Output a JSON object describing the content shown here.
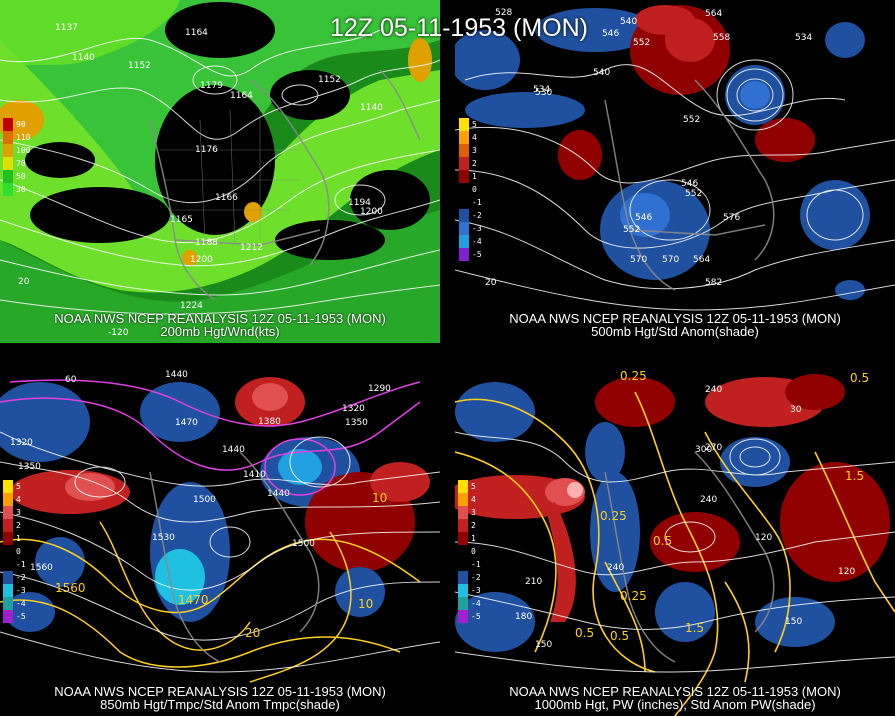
{
  "title": "12Z 05-11-1953 (MON)",
  "panels": {
    "p1": {
      "source": "NOAA NWS NCEP REANALYSIS 12Z 05-11-1953 (MON)",
      "field": "200mb Hgt/Wnd(kts)",
      "legend": [
        {
          "label": "90",
          "color": "#c00000"
        },
        {
          "label": "110",
          "color": "#e07000"
        },
        {
          "label": "100",
          "color": "#e0a000"
        },
        {
          "label": "70",
          "color": "#e0e000"
        },
        {
          "label": "50",
          "color": "#20c020"
        },
        {
          "label": "30",
          "color": "#30e030"
        }
      ],
      "contour_labels": [
        "1137",
        "1164",
        "1140",
        "1152",
        "1179",
        "1164",
        "1152",
        "1176",
        "1140",
        "1165",
        "1166",
        "1194",
        "1200",
        "1188",
        "1212",
        "1200",
        "1224",
        "20",
        "-120"
      ]
    },
    "p2": {
      "source": "NOAA NWS NCEP REANALYSIS 12Z 05-11-1953 (MON)",
      "field": "500mb Hgt/Std Anom(shade)",
      "legend": [
        {
          "label": "5",
          "color": "#ffe000"
        },
        {
          "label": "4",
          "color": "#ffa000"
        },
        {
          "label": "3",
          "color": "#e06000"
        },
        {
          "label": "2",
          "color": "#c02020"
        },
        {
          "label": "1",
          "color": "#900000"
        },
        {
          "label": "0",
          "color": "#000000"
        },
        {
          "label": "-1",
          "color": "#000000"
        },
        {
          "label": "-2",
          "color": "#2050a0"
        },
        {
          "label": "-3",
          "color": "#3070d0"
        },
        {
          "label": "-4",
          "color": "#20a0e0"
        },
        {
          "label": "-5",
          "color": "#8020d0"
        }
      ],
      "contour_labels": [
        "528",
        "540",
        "564",
        "558",
        "546",
        "552",
        "540",
        "534",
        "534",
        "530",
        "552",
        "546",
        "552",
        "546",
        "576",
        "552",
        "570",
        "564",
        "570",
        "582",
        "20"
      ]
    },
    "p3": {
      "source": "NOAA NWS NCEP REANALYSIS 12Z 05-11-1953 (MON)",
      "field": "850mb Hgt/Tmpc/Std Anom Tmpc(shade)",
      "legend": [
        {
          "label": "5",
          "color": "#ffe000"
        },
        {
          "label": "4",
          "color": "#ffa000"
        },
        {
          "label": "3",
          "color": "#e05050"
        },
        {
          "label": "2",
          "color": "#c02020"
        },
        {
          "label": "1",
          "color": "#900000"
        },
        {
          "label": "0",
          "color": "#000000"
        },
        {
          "label": "-1",
          "color": "#000000"
        },
        {
          "label": "-2",
          "color": "#2050a0"
        },
        {
          "label": "-3",
          "color": "#20c0e0"
        },
        {
          "label": "-4",
          "color": "#20a0a0"
        },
        {
          "label": "-5",
          "color": "#a020d0"
        }
      ],
      "contour_labels": [
        "60",
        "1440",
        "1320",
        "1350",
        "1470",
        "1380",
        "1440",
        "1290",
        "1320",
        "1350",
        "1500",
        "1410",
        "1440",
        "1530",
        "1500",
        "1560",
        "1470",
        "1560",
        "10",
        "20",
        "10"
      ]
    },
    "p4": {
      "source": "NOAA NWS NCEP REANALYSIS 12Z 05-11-1953 (MON)",
      "field": "1000mb Hgt, PW (inches), Std Anom PW(shade)",
      "legend": [
        {
          "label": "5",
          "color": "#ffe000"
        },
        {
          "label": "4",
          "color": "#ffa000"
        },
        {
          "label": "3",
          "color": "#e05050"
        },
        {
          "label": "2",
          "color": "#c02020"
        },
        {
          "label": "1",
          "color": "#900000"
        },
        {
          "label": "0",
          "color": "#000000"
        },
        {
          "label": "-1",
          "color": "#000000"
        },
        {
          "label": "-2",
          "color": "#2050a0"
        },
        {
          "label": "-3",
          "color": "#20c0e0"
        },
        {
          "label": "-4",
          "color": "#20a0a0"
        },
        {
          "label": "-5",
          "color": "#a020d0"
        }
      ],
      "contour_labels": [
        "0.25",
        "240",
        "30",
        "0.5",
        "270",
        "300",
        "240",
        "0.25",
        "120",
        "210",
        "240",
        "0.5",
        "0.25",
        "180",
        "150",
        "1.5",
        "0.5",
        "120",
        "1.5",
        "150",
        "0.5"
      ]
    }
  }
}
